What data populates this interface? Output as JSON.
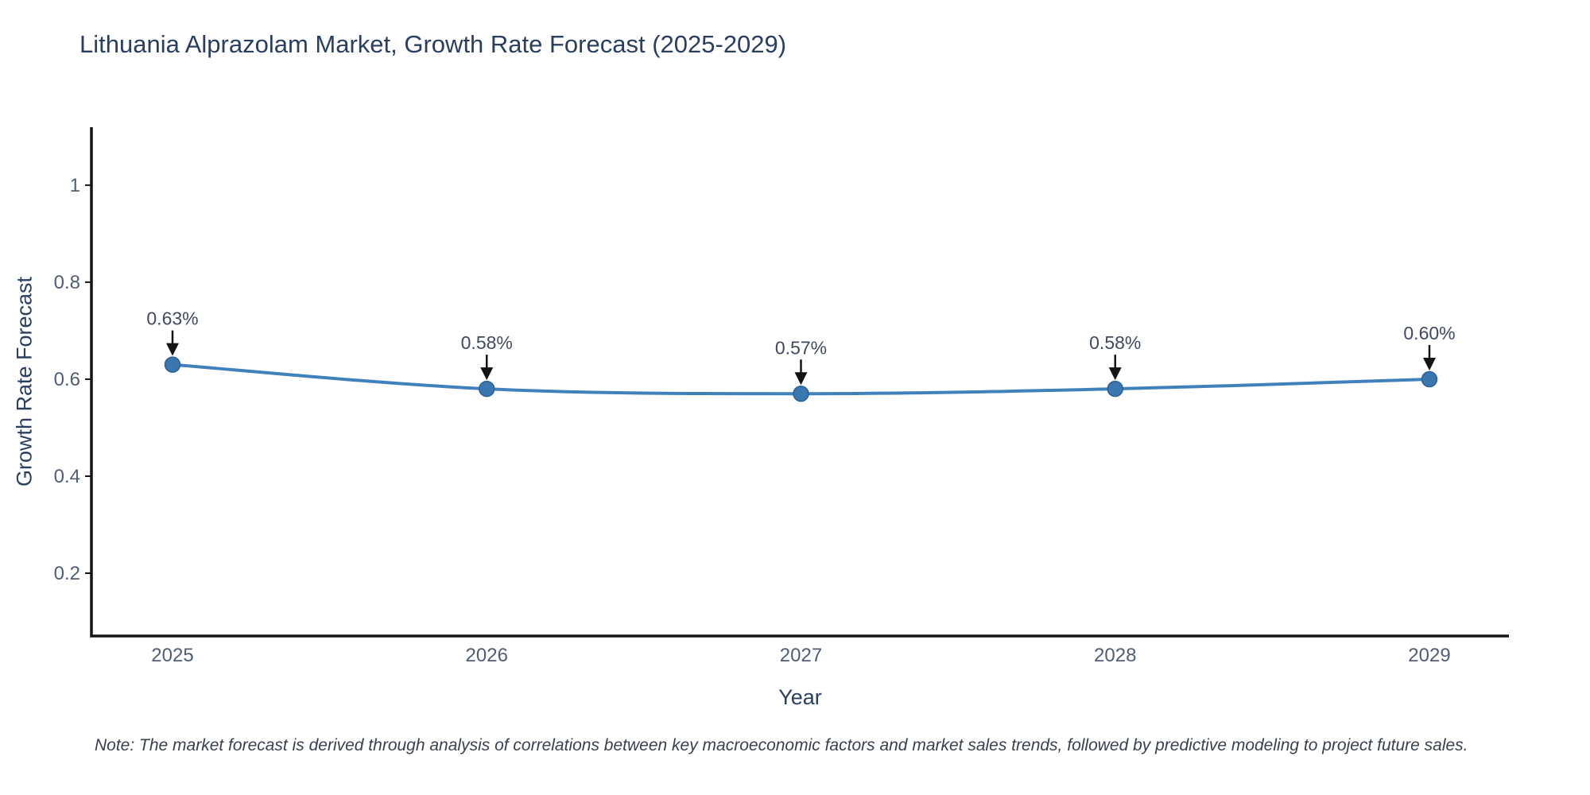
{
  "header": {
    "title": "Lithuania Alprazolam Market, Growth Rate Forecast (2025-2029)"
  },
  "note": {
    "text": "Note: The market forecast is derived through analysis of correlations between key macroeconomic factors and market sales trends, followed by predictive modeling to project future sales."
  },
  "chart_data": {
    "type": "line",
    "title": "Lithuania Alprazolam Market, Growth Rate Forecast (2025-2029)",
    "xlabel": "Year",
    "ylabel": "Growth Rate Forecast",
    "x": [
      2025,
      2026,
      2027,
      2028,
      2029
    ],
    "y": [
      0.63,
      0.58,
      0.57,
      0.58,
      0.6
    ],
    "point_labels": [
      "0.63%",
      "0.58%",
      "0.57%",
      "0.58%",
      "0.60%"
    ],
    "xtick_labels": [
      "2025",
      "2026",
      "2027",
      "2028",
      "2029"
    ],
    "yticks": [
      0.2,
      0.4,
      0.6,
      0.8,
      1
    ],
    "ytick_labels": [
      "0.2",
      "0.4",
      "0.6",
      "0.8",
      "1"
    ],
    "ylim": [
      0.0705,
      1.1195
    ],
    "grid": false,
    "legend": "none",
    "colors": {
      "line": "#4181bb",
      "marker_fill": "#3a76b0",
      "marker_edge": "#2c6195",
      "axis": "#141414",
      "tick_label": "#505d73",
      "annotation_text": "#3f4a5e",
      "arrow": "#141414",
      "title": "#2a3f5f"
    }
  }
}
